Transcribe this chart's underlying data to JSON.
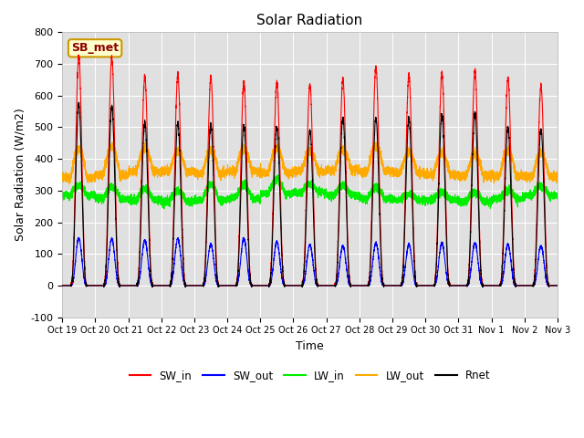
{
  "title": "Solar Radiation",
  "xlabel": "Time",
  "ylabel": "Solar Radiation (W/m2)",
  "ylim": [
    -100,
    800
  ],
  "yticks": [
    -100,
    0,
    100,
    200,
    300,
    400,
    500,
    600,
    700,
    800
  ],
  "plot_bg_color": "#e0e0e0",
  "outer_bg": "#ffffff",
  "label_box_text": "SB_met",
  "label_box_facecolor": "#ffffcc",
  "label_box_edgecolor": "#cc9900",
  "legend_entries": [
    "SW_in",
    "SW_out",
    "LW_in",
    "LW_out",
    "Rnet"
  ],
  "line_colors": {
    "SW_in": "#ff0000",
    "SW_out": "#0000ff",
    "LW_in": "#00ee00",
    "LW_out": "#ffaa00",
    "Rnet": "#000000"
  },
  "n_days": 15,
  "SW_in_peaks": [
    725,
    720,
    660,
    665,
    660,
    640,
    640,
    635,
    650,
    690,
    665,
    670,
    680,
    655,
    630
  ],
  "SW_out_peaks": [
    150,
    148,
    143,
    148,
    130,
    148,
    138,
    128,
    125,
    135,
    130,
    135,
    135,
    130,
    125
  ],
  "LW_in_base": [
    285,
    275,
    270,
    265,
    270,
    275,
    290,
    295,
    285,
    275,
    270,
    270,
    265,
    275,
    285
  ],
  "LW_in_peak_boost": [
    30,
    35,
    35,
    35,
    50,
    40,
    45,
    25,
    30,
    35,
    20,
    25,
    30,
    25,
    30
  ],
  "LW_out_base": [
    340,
    350,
    360,
    360,
    355,
    360,
    355,
    360,
    365,
    360,
    355,
    350,
    345,
    345,
    345
  ],
  "LW_out_peak_boost": [
    90,
    90,
    75,
    65,
    70,
    70,
    80,
    65,
    65,
    80,
    65,
    70,
    70,
    80,
    75
  ],
  "Rnet_peaks": [
    575,
    565,
    515,
    515,
    510,
    505,
    500,
    490,
    530,
    530,
    530,
    540,
    545,
    500,
    495
  ],
  "x_tick_labels": [
    "Oct 19",
    "Oct 20",
    "Oct 21",
    "Oct 22",
    "Oct 23",
    "Oct 24",
    "Oct 25",
    "Oct 26",
    "Oct 27",
    "Oct 28",
    "Oct 29",
    "Oct 30",
    "Oct 31",
    "Nov 1",
    "Nov 2",
    "Nov 3"
  ],
  "figsize": [
    6.4,
    4.8
  ],
  "dpi": 100
}
